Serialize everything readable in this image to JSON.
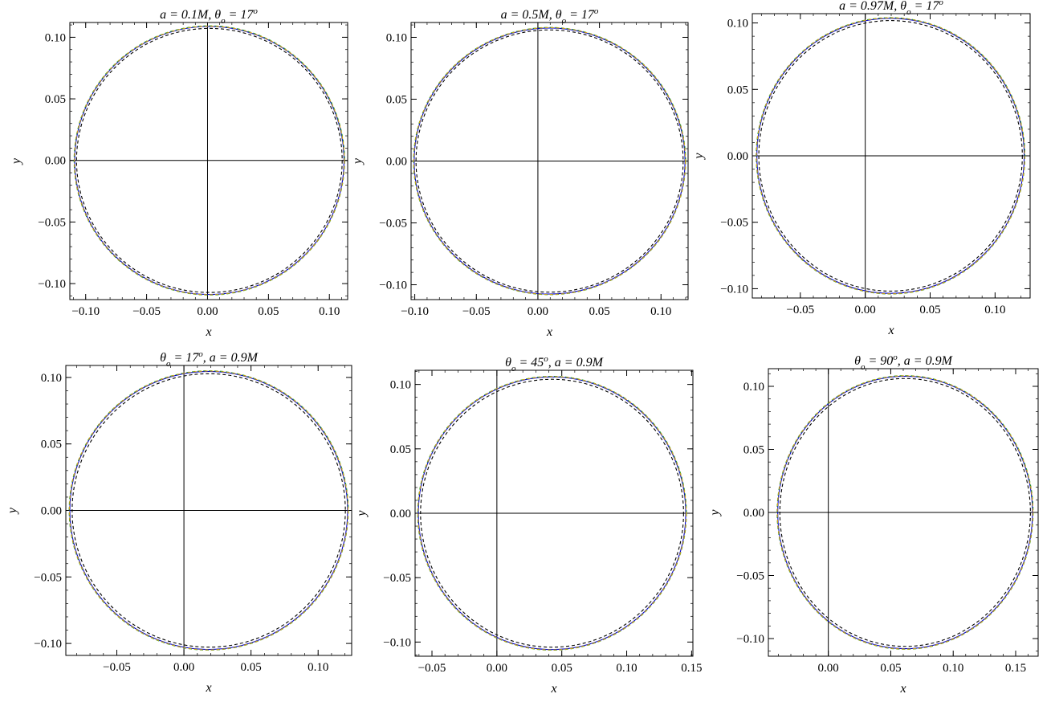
{
  "chart_data": [
    {
      "type": "line",
      "title": "a = 0.1M, θo = 17o",
      "title_parts": [
        "a = 0.1M, θ",
        "o",
        " = 17",
        "o"
      ],
      "xlabel": "x",
      "ylabel": "y",
      "xlim": [
        -0.113,
        0.115
      ],
      "ylim": [
        -0.113,
        0.112
      ],
      "xticks": [
        -0.1,
        -0.05,
        0.0,
        0.05,
        0.1
      ],
      "xtick_labels": [
        "−0.10",
        "−0.05",
        "0.00",
        "0.05",
        "0.10"
      ],
      "yticks": [
        -0.1,
        -0.05,
        0.0,
        0.05,
        0.1
      ],
      "ytick_labels": [
        "−0.10",
        "−0.05",
        "0.00",
        "0.05",
        "0.10"
      ],
      "grid": false,
      "series": [
        {
          "style": "solid",
          "color": "#0000cc",
          "center": [
            0.0015,
            0.0
          ],
          "radius": [
            0.1105,
            0.1088
          ]
        },
        {
          "style": "dashed",
          "color": "#2a9d2a",
          "center": [
            0.0015,
            0.0
          ],
          "radius": [
            0.111,
            0.1093
          ]
        },
        {
          "style": "dashed",
          "color": "#d4a017",
          "center": [
            0.0015,
            0.0
          ],
          "radius": [
            0.1108,
            0.109
          ]
        },
        {
          "style": "dashed",
          "color": "#000000",
          "center": [
            0.0015,
            0.0
          ],
          "radius": [
            0.109,
            0.1072
          ]
        }
      ]
    },
    {
      "type": "line",
      "title": "a = 0.5M, θo = 17o",
      "title_parts": [
        "a = 0.5M, θ",
        "o",
        " = 17",
        "o"
      ],
      "xlabel": "x",
      "ylabel": "y",
      "xlim": [
        -0.103,
        0.122
      ],
      "ylim": [
        -0.112,
        0.112
      ],
      "xticks": [
        -0.1,
        -0.05,
        0.0,
        0.05,
        0.1
      ],
      "xtick_labels": [
        "−0.10",
        "−0.05",
        "0.00",
        "0.05",
        "0.10"
      ],
      "yticks": [
        -0.1,
        -0.05,
        0.0,
        0.05,
        0.1
      ],
      "ytick_labels": [
        "−0.10",
        "−0.05",
        "0.00",
        "0.05",
        "0.10"
      ],
      "grid": false,
      "series": [
        {
          "style": "solid",
          "color": "#0000cc",
          "center": [
            0.0095,
            0.0
          ],
          "radius": [
            0.11,
            0.1075
          ]
        },
        {
          "style": "dashed",
          "color": "#2a9d2a",
          "center": [
            0.0095,
            0.0
          ],
          "radius": [
            0.1105,
            0.108
          ]
        },
        {
          "style": "dashed",
          "color": "#d4a017",
          "center": [
            0.0095,
            0.0
          ],
          "radius": [
            0.1103,
            0.1078
          ]
        },
        {
          "style": "dashed",
          "color": "#000000",
          "center": [
            0.0095,
            0.0
          ],
          "radius": [
            0.1085,
            0.106
          ]
        }
      ]
    },
    {
      "type": "line",
      "title": "a = 0.97M, θo = 17o",
      "title_parts": [
        "a = 0.97M, θ",
        "o",
        " = 17",
        "o"
      ],
      "xlabel": "x",
      "ylabel": "y",
      "xlim": [
        -0.087,
        0.127
      ],
      "ylim": [
        -0.107,
        0.107
      ],
      "xticks": [
        -0.05,
        0.0,
        0.05,
        0.1
      ],
      "xtick_labels": [
        "−0.05",
        "0.00",
        "0.05",
        "0.10"
      ],
      "yticks": [
        -0.1,
        -0.05,
        0.0,
        0.05,
        0.1
      ],
      "ytick_labels": [
        "−0.10",
        "−0.05",
        "0.00",
        "0.05",
        "0.10"
      ],
      "grid": false,
      "series": [
        {
          "style": "solid",
          "color": "#0000cc",
          "center": [
            0.0195,
            0.0
          ],
          "radius": [
            0.103,
            0.1035
          ]
        },
        {
          "style": "dashed",
          "color": "#2a9d2a",
          "center": [
            0.0195,
            0.0
          ],
          "radius": [
            0.1035,
            0.104
          ]
        },
        {
          "style": "dashed",
          "color": "#d4a017",
          "center": [
            0.0195,
            0.0
          ],
          "radius": [
            0.1033,
            0.1038
          ]
        },
        {
          "style": "dashed",
          "color": "#000000",
          "center": [
            0.0195,
            0.0
          ],
          "radius": [
            0.1015,
            0.1018
          ]
        }
      ]
    },
    {
      "type": "line",
      "title": "θo = 17o, a = 0.9M",
      "title_parts": [
        "θ",
        "o",
        " = 17",
        "o",
        ", a = 0.9M"
      ],
      "xlabel": "x",
      "ylabel": "y",
      "xlim": [
        -0.088,
        0.125
      ],
      "ylim": [
        -0.109,
        0.109
      ],
      "xticks": [
        -0.05,
        0.0,
        0.05,
        0.1
      ],
      "xtick_labels": [
        "−0.05",
        "0.00",
        "0.05",
        "0.10"
      ],
      "yticks": [
        -0.1,
        -0.05,
        0.0,
        0.05,
        0.1
      ],
      "ytick_labels": [
        "−0.10",
        "−0.05",
        "0.00",
        "0.05",
        "0.10"
      ],
      "grid": false,
      "series": [
        {
          "style": "solid",
          "color": "#0000cc",
          "center": [
            0.0185,
            0.0
          ],
          "radius": [
            0.1035,
            0.1045
          ]
        },
        {
          "style": "dashed",
          "color": "#2a9d2a",
          "center": [
            0.0185,
            0.0
          ],
          "radius": [
            0.104,
            0.105
          ]
        },
        {
          "style": "dashed",
          "color": "#d4a017",
          "center": [
            0.0185,
            0.0
          ],
          "radius": [
            0.1038,
            0.1048
          ]
        },
        {
          "style": "dashed",
          "color": "#000000",
          "center": [
            0.0185,
            0.0
          ],
          "radius": [
            0.1018,
            0.1028
          ]
        }
      ]
    },
    {
      "type": "line",
      "title": "θo = 45o, a = 0.9M",
      "title_parts": [
        "θ",
        "o",
        " = 45",
        "o",
        ", a = 0.9M"
      ],
      "xlabel": "x",
      "ylabel": "y",
      "xlim": [
        -0.063,
        0.151
      ],
      "ylim": [
        -0.111,
        0.111
      ],
      "xticks": [
        -0.05,
        0.0,
        0.05,
        0.1,
        0.15
      ],
      "xtick_labels": [
        "−0.05",
        "0.00",
        "0.05",
        "0.10",
        "0.15"
      ],
      "yticks": [
        -0.1,
        -0.05,
        0.0,
        0.05,
        0.1
      ],
      "ytick_labels": [
        "−0.10",
        "−0.05",
        "0.00",
        "0.05",
        "0.10"
      ],
      "grid": false,
      "series": [
        {
          "style": "solid",
          "color": "#0000cc",
          "center": [
            0.0425,
            0.0
          ],
          "radius": [
            0.103,
            0.1058
          ]
        },
        {
          "style": "dashed",
          "color": "#2a9d2a",
          "center": [
            0.0425,
            0.0
          ],
          "radius": [
            0.1035,
            0.1063
          ]
        },
        {
          "style": "dashed",
          "color": "#d4a017",
          "center": [
            0.0425,
            0.0
          ],
          "radius": [
            0.1033,
            0.1061
          ]
        },
        {
          "style": "dashed",
          "color": "#000000",
          "center": [
            0.0425,
            0.0
          ],
          "radius": [
            0.1013,
            0.104
          ]
        }
      ]
    },
    {
      "type": "line",
      "title": "θo = 90o, a = 0.9M",
      "title_parts": [
        "θ",
        "o",
        " = 90",
        "o",
        ", a = 0.9M"
      ],
      "xlabel": "x",
      "ylabel": "y",
      "xlim": [
        -0.048,
        0.168
      ],
      "ylim": [
        -0.114,
        0.114
      ],
      "xticks": [
        0.0,
        0.05,
        0.1,
        0.15
      ],
      "xtick_labels": [
        "0.00",
        "0.05",
        "0.10",
        "0.15"
      ],
      "yticks": [
        -0.1,
        -0.05,
        0.0,
        0.05,
        0.1
      ],
      "ytick_labels": [
        "−0.10",
        "−0.05",
        "0.00",
        "0.05",
        "0.10"
      ],
      "grid": false,
      "series": [
        {
          "style": "solid",
          "color": "#0000cc",
          "center": [
            0.0615,
            0.0
          ],
          "radius": [
            0.102,
            0.108
          ]
        },
        {
          "style": "dashed",
          "color": "#2a9d2a",
          "center": [
            0.0615,
            0.0
          ],
          "radius": [
            0.1025,
            0.1085
          ]
        },
        {
          "style": "dashed",
          "color": "#d4a017",
          "center": [
            0.0615,
            0.0
          ],
          "radius": [
            0.1023,
            0.1083
          ]
        },
        {
          "style": "dashed",
          "color": "#000000",
          "center": [
            0.0615,
            0.0
          ],
          "radius": [
            0.1003,
            0.1062
          ]
        }
      ]
    }
  ]
}
